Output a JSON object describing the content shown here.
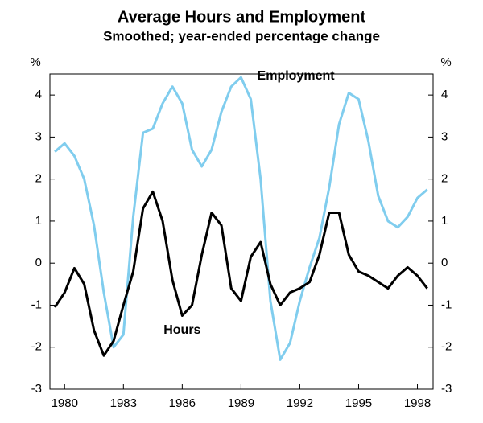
{
  "chart_data": {
    "type": "line",
    "title": "Average Hours and Employment",
    "subtitle": "Smoothed; year-ended percentage change",
    "y_label": "%",
    "y2_label": "%",
    "annotations": [
      {
        "text": "Employment",
        "x": 1991.8,
        "y": 4.45
      },
      {
        "text": "Hours",
        "x": 1986,
        "y": -1.6
      }
    ],
    "x": [
      1979.5,
      1980,
      1980.5,
      1981,
      1981.5,
      1982,
      1982.5,
      1983,
      1983.5,
      1984,
      1984.5,
      1985,
      1985.5,
      1986,
      1986.5,
      1987,
      1987.5,
      1988,
      1988.5,
      1989,
      1989.5,
      1990,
      1990.5,
      1991,
      1991.5,
      1992,
      1992.5,
      1993,
      1993.5,
      1994,
      1994.5,
      1995,
      1995.5,
      1996,
      1996.5,
      1997,
      1997.5,
      1998,
      1998.5
    ],
    "series": [
      {
        "name": "Employment",
        "color": "#80cdee",
        "values": [
          2.65,
          2.85,
          2.55,
          2.0,
          0.9,
          -0.7,
          -2.0,
          -1.7,
          1.1,
          3.1,
          3.2,
          3.8,
          4.2,
          3.8,
          2.7,
          2.3,
          2.7,
          3.6,
          4.2,
          4.42,
          3.9,
          2.0,
          -0.9,
          -2.3,
          -1.9,
          -0.9,
          -0.1,
          0.6,
          1.8,
          3.3,
          4.05,
          3.9,
          2.9,
          1.6,
          1.0,
          0.85,
          1.1,
          1.55,
          1.75
        ]
      },
      {
        "name": "Hours",
        "color": "#000000",
        "values": [
          -1.05,
          -0.7,
          -0.12,
          -0.5,
          -1.6,
          -2.2,
          -1.85,
          -1.0,
          -0.2,
          1.3,
          1.7,
          1.0,
          -0.4,
          -1.25,
          -1.0,
          0.2,
          1.2,
          0.9,
          -0.6,
          -0.9,
          0.15,
          0.5,
          -0.5,
          -1.0,
          -0.7,
          -0.6,
          -0.45,
          0.2,
          1.2,
          1.2,
          0.2,
          -0.2,
          -0.3,
          -0.45,
          -0.6,
          -0.3,
          -0.1,
          -0.3,
          -0.6
        ]
      }
    ],
    "xlim": [
      1979.25,
      1998.8
    ],
    "xticks": [
      1980,
      1983,
      1986,
      1989,
      1992,
      1995,
      1998
    ],
    "ylim": [
      -3,
      4.5
    ],
    "yticks": [
      -3,
      -2,
      -1,
      0,
      1,
      2,
      3,
      4
    ],
    "y2lim": [
      -3,
      4.5
    ],
    "y2ticks": [
      -3,
      -2,
      -1,
      0,
      1,
      2,
      3,
      4
    ],
    "grid": false
  }
}
